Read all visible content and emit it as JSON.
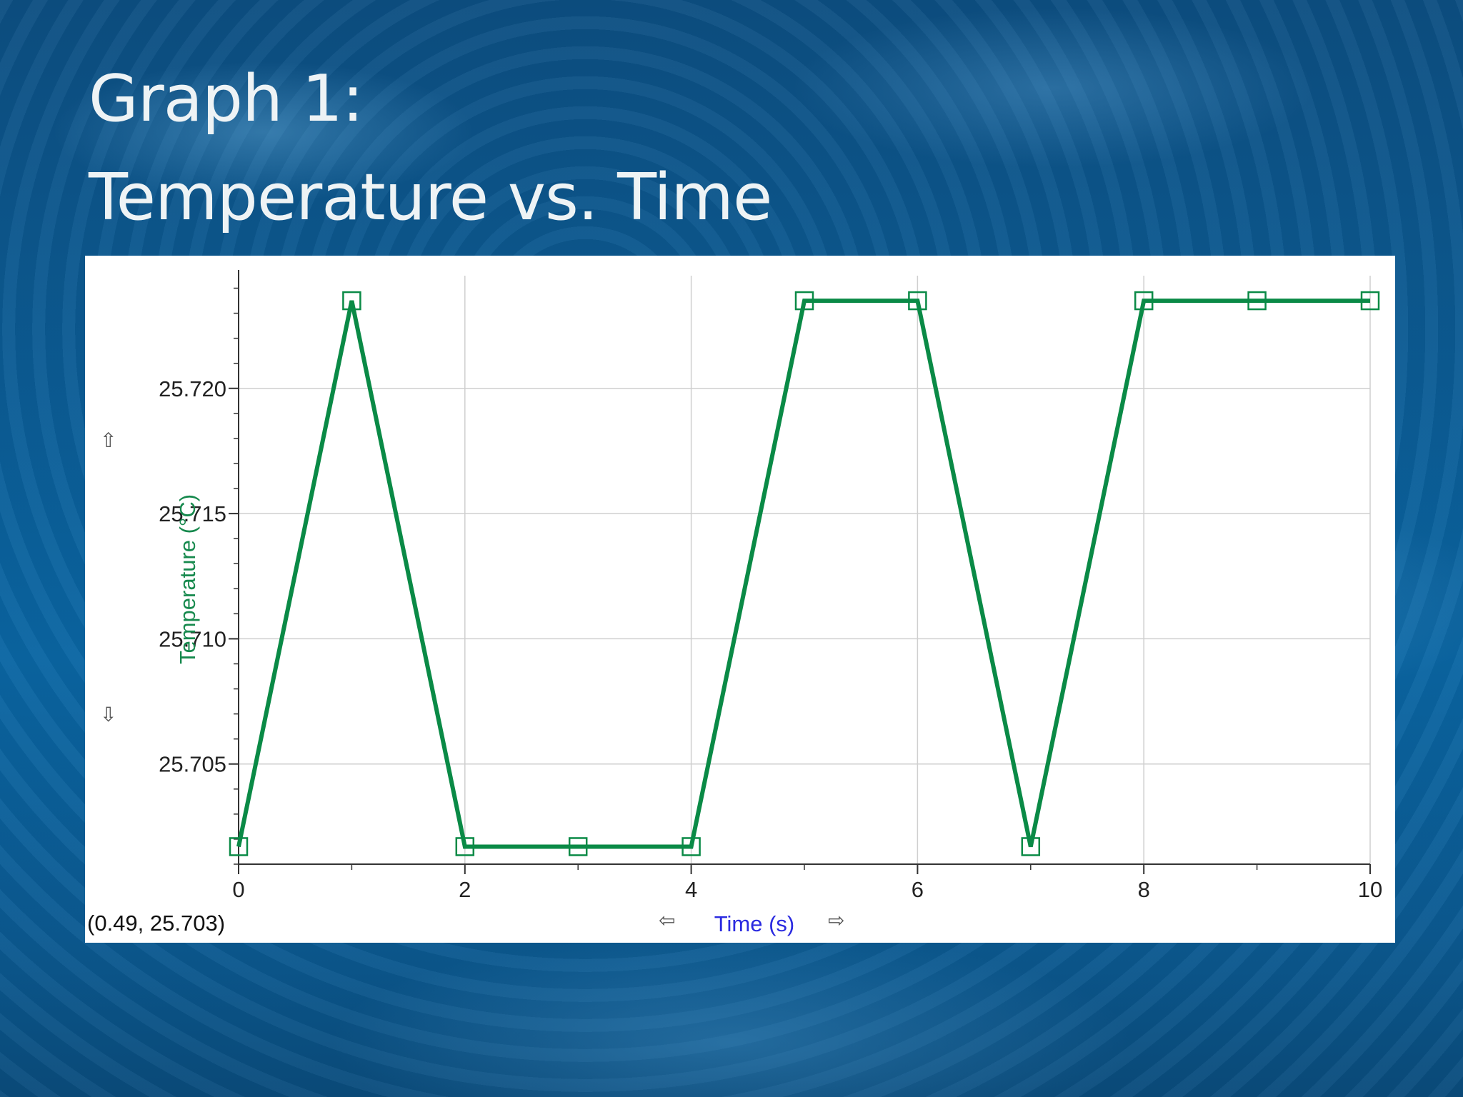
{
  "slide": {
    "title_line1": "Graph 1:",
    "title_line2": "Temperature vs. Time"
  },
  "chart_data": {
    "type": "line",
    "xlabel": "Time (s)",
    "ylabel": "Temperature (°C)",
    "xlim": [
      0,
      10
    ],
    "ylim": [
      25.701,
      25.7245
    ],
    "x_ticks": [
      0,
      2,
      4,
      6,
      8,
      10
    ],
    "x_tick_labels": [
      "0",
      "2",
      "4",
      "6",
      "8",
      "10"
    ],
    "y_ticks": [
      25.705,
      25.71,
      25.715,
      25.72
    ],
    "y_tick_labels": [
      "25.705",
      "25.710",
      "25.715",
      "25.720"
    ],
    "grid": true,
    "series": [
      {
        "x": [
          0,
          1,
          2,
          3,
          4,
          5,
          6,
          7,
          8,
          9,
          10
        ],
        "y": [
          25.7017,
          25.7235,
          25.7017,
          25.7017,
          25.7017,
          25.7235,
          25.7235,
          25.7017,
          25.7235,
          25.7235,
          25.7235
        ],
        "color": "#0a8a46",
        "marker": "square"
      }
    ],
    "cursor_readout": "(0.49, 25.703)"
  },
  "colors": {
    "line": "#0a8a46",
    "ylabel": "#16894d",
    "xlabel": "#2a2ae0",
    "grid": "#cfcfcf"
  },
  "icons": {
    "y_up": "arrow-up-icon",
    "y_down": "arrow-down-icon",
    "x_left": "arrow-left-icon",
    "x_right": "arrow-right-icon"
  }
}
